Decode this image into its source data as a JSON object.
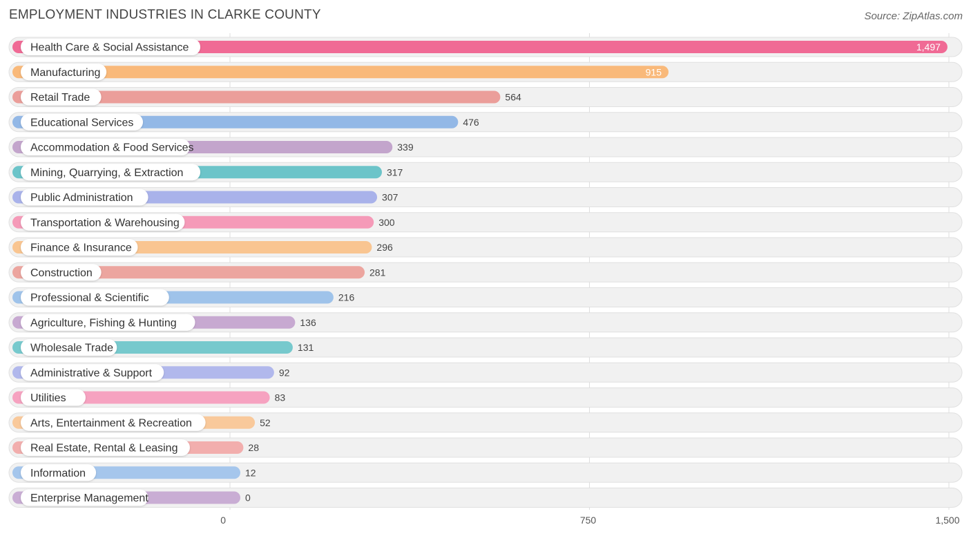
{
  "title": "EMPLOYMENT INDUSTRIES IN CLARKE COUNTY",
  "source": "Source: ZipAtlas.com",
  "chart_data": {
    "type": "bar",
    "orientation": "horizontal",
    "title": "EMPLOYMENT INDUSTRIES IN CLARKE COUNTY",
    "xlabel": "",
    "ylabel": "",
    "xlim": [
      0,
      1500
    ],
    "xticks": [
      0,
      750,
      1500
    ],
    "xtick_labels": [
      "0",
      "750",
      "1,500"
    ],
    "grid": true,
    "categories": [
      "Health Care & Social Assistance",
      "Manufacturing",
      "Retail Trade",
      "Educational Services",
      "Accommodation & Food Services",
      "Mining, Quarrying, & Extraction",
      "Public Administration",
      "Transportation & Warehousing",
      "Finance & Insurance",
      "Construction",
      "Professional & Scientific",
      "Agriculture, Fishing & Hunting",
      "Wholesale Trade",
      "Administrative & Support",
      "Utilities",
      "Arts, Entertainment & Recreation",
      "Real Estate, Rental & Leasing",
      "Information",
      "Enterprise Management"
    ],
    "values": [
      1497,
      915,
      564,
      476,
      339,
      317,
      307,
      300,
      296,
      281,
      216,
      136,
      131,
      92,
      83,
      52,
      28,
      12,
      0
    ],
    "value_labels": [
      "1,497",
      "915",
      "564",
      "476",
      "339",
      "317",
      "307",
      "300",
      "296",
      "281",
      "216",
      "136",
      "131",
      "92",
      "83",
      "52",
      "28",
      "12",
      "0"
    ],
    "colors": [
      "#f06a95",
      "#f9b97a",
      "#eb9e9a",
      "#93b8e6",
      "#c3a5cc",
      "#6cc4c9",
      "#a9b2ea",
      "#f59ab8",
      "#f9c591",
      "#eca59f",
      "#9fc3ea",
      "#c7a9d1",
      "#77c9cd",
      "#b1b8ec",
      "#f6a2c0",
      "#f9c99b",
      "#f2aead",
      "#a5c6ec",
      "#c9add4"
    ]
  }
}
